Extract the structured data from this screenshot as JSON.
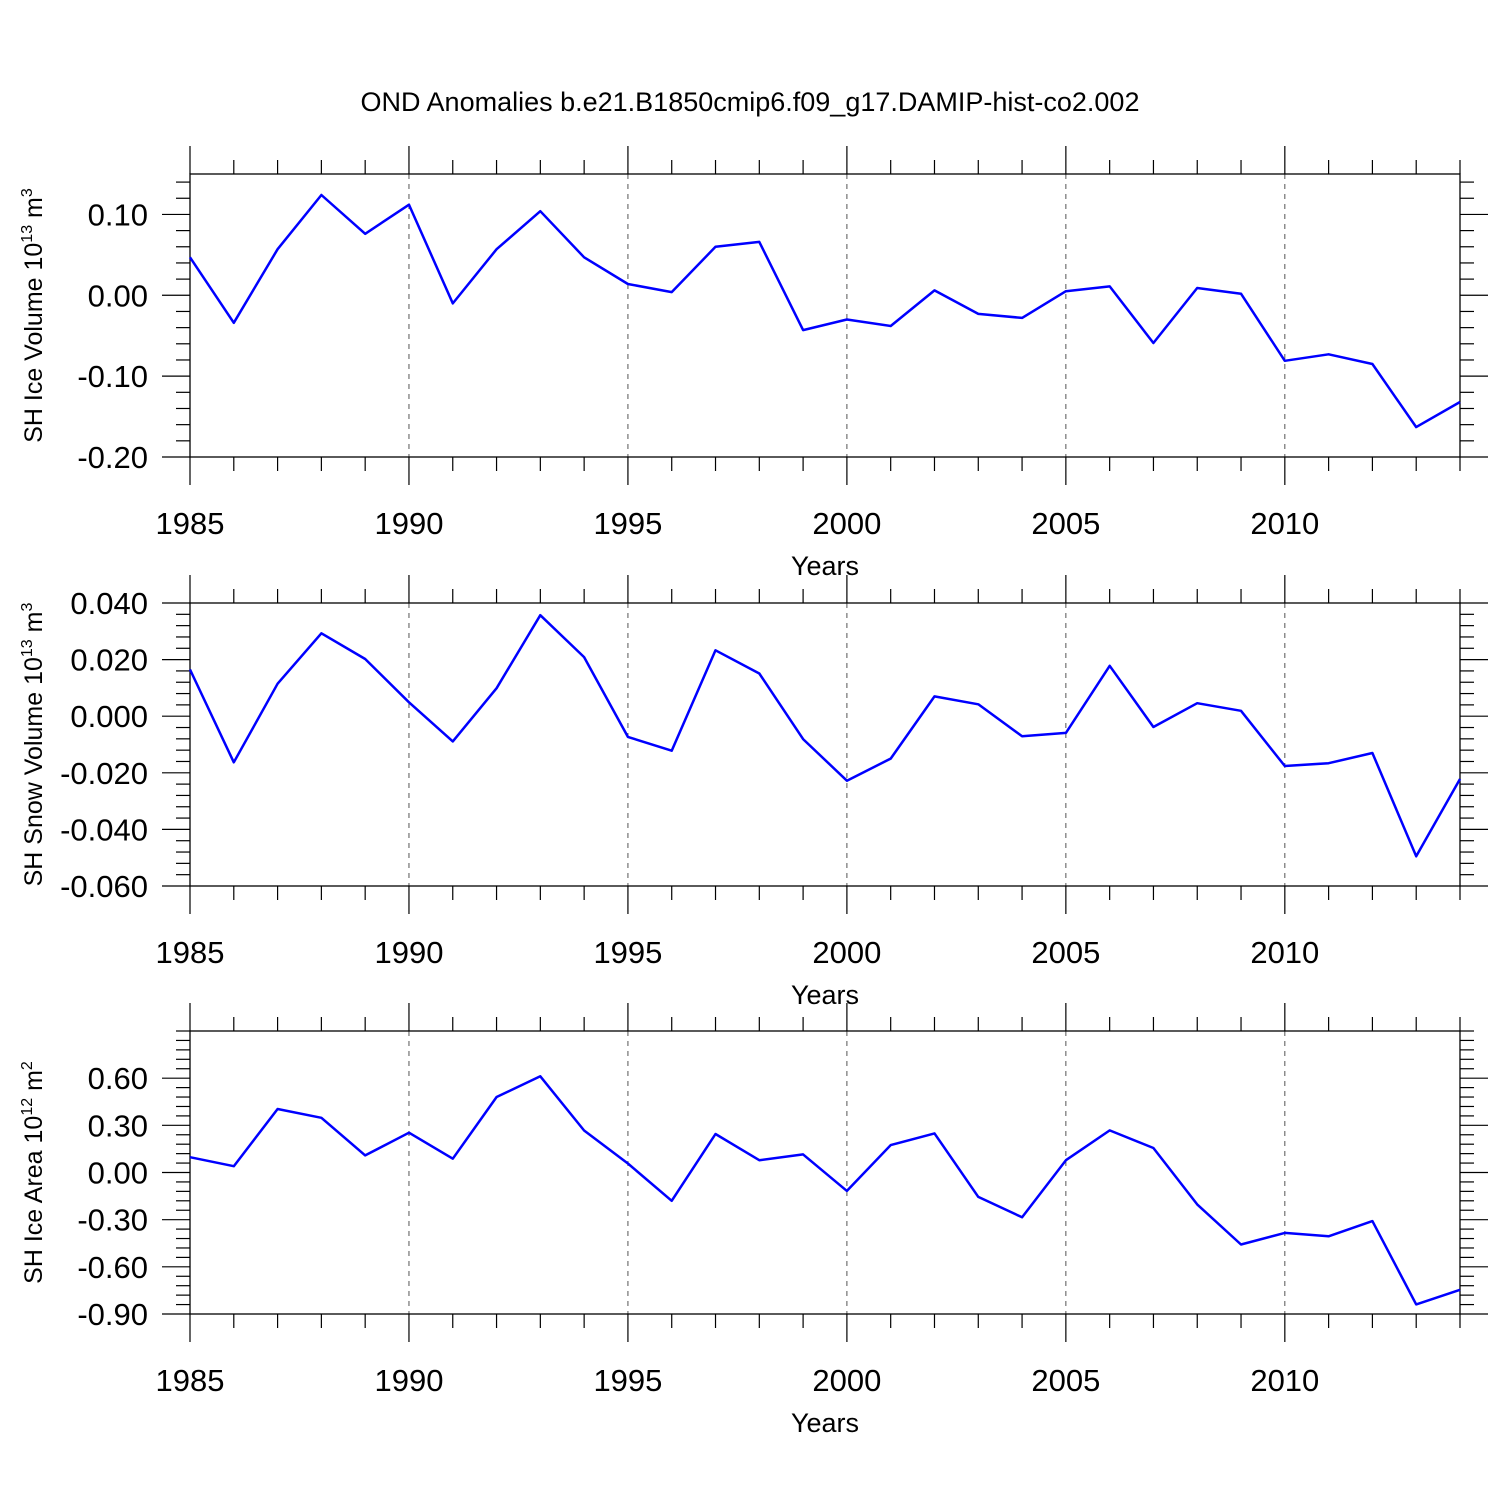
{
  "chart_data": [
    {
      "type": "line",
      "title": "OND Anomalies b.e21.B1850cmip6.f09_g17.DAMIP-hist-co2.002",
      "xlabel": "Years",
      "ylabel": "SH Ice Volume 10",
      "ylabel_sup": "13",
      "ylabel_unit": " m",
      "ylabel_unit_sup": "3",
      "xlim": [
        1985,
        2014
      ],
      "ylim": [
        -0.2,
        0.15
      ],
      "xticks": [
        "1985",
        "1990",
        "1995",
        "2000",
        "2005",
        "2010"
      ],
      "yticks": [
        "0.10",
        "0.00",
        "-0.10",
        "-0.20"
      ],
      "ytick_values": [
        0.1,
        0.0,
        -0.1,
        -0.2
      ],
      "grid": "vertical dashed at major x ticks",
      "x": [
        1985,
        1986,
        1987,
        1988,
        1989,
        1990,
        1991,
        1992,
        1993,
        1994,
        1995,
        1996,
        1997,
        1998,
        1999,
        2000,
        2001,
        2002,
        2003,
        2004,
        2005,
        2006,
        2007,
        2008,
        2009,
        2010,
        2011,
        2012,
        2013,
        2014
      ],
      "series": [
        {
          "color": "#0000ff",
          "values": [
            0.047,
            -0.034,
            0.057,
            0.124,
            0.076,
            0.112,
            -0.01,
            0.057,
            0.104,
            0.047,
            0.014,
            0.004,
            0.06,
            0.066,
            -0.043,
            -0.03,
            -0.038,
            0.006,
            -0.023,
            -0.028,
            0.005,
            0.011,
            -0.059,
            0.009,
            0.002,
            -0.081,
            -0.073,
            -0.085,
            -0.163,
            -0.132
          ]
        }
      ]
    },
    {
      "type": "line",
      "xlabel": "Years",
      "ylabel": "SH Snow Volume 10",
      "ylabel_sup": "13",
      "ylabel_unit": " m",
      "ylabel_unit_sup": "3",
      "xlim": [
        1985,
        2014
      ],
      "ylim": [
        -0.06,
        0.04
      ],
      "xticks": [
        "1985",
        "1990",
        "1995",
        "2000",
        "2005",
        "2010"
      ],
      "yticks": [
        "0.040",
        "0.020",
        "0.000",
        "-0.020",
        "-0.040",
        "-0.060"
      ],
      "ytick_values": [
        0.04,
        0.02,
        0.0,
        -0.02,
        -0.04,
        -0.06
      ],
      "grid": "vertical dashed at major x ticks",
      "x": [
        1985,
        1986,
        1987,
        1988,
        1989,
        1990,
        1991,
        1992,
        1993,
        1994,
        1995,
        1996,
        1997,
        1998,
        1999,
        2000,
        2001,
        2002,
        2003,
        2004,
        2005,
        2006,
        2007,
        2008,
        2009,
        2010,
        2011,
        2012,
        2013,
        2014
      ],
      "series": [
        {
          "color": "#0000ff",
          "values": [
            0.0165,
            -0.0163,
            0.0115,
            0.0293,
            0.0202,
            0.0049,
            -0.0089,
            0.0099,
            0.0357,
            0.0209,
            -0.0073,
            -0.0122,
            0.0233,
            0.0151,
            -0.0081,
            -0.0228,
            -0.015,
            0.007,
            0.0042,
            -0.0071,
            -0.0059,
            0.0178,
            -0.0038,
            0.0046,
            0.0019,
            -0.0176,
            -0.0166,
            -0.013,
            -0.0495,
            -0.0222
          ]
        }
      ]
    },
    {
      "type": "line",
      "xlabel": "Years",
      "ylabel": "SH Ice Area 10",
      "ylabel_sup": "12",
      "ylabel_unit": " m",
      "ylabel_unit_sup": "2",
      "xlim": [
        1985,
        2014
      ],
      "ylim": [
        -0.9,
        0.9
      ],
      "xticks": [
        "1985",
        "1990",
        "1995",
        "2000",
        "2005",
        "2010"
      ],
      "yticks": [
        "0.60",
        "0.30",
        "0.00",
        "-0.30",
        "-0.60",
        "-0.90"
      ],
      "ytick_values": [
        0.6,
        0.3,
        0.0,
        -0.3,
        -0.6,
        -0.9
      ],
      "grid": "vertical dashed at major x ticks",
      "x": [
        1985,
        1986,
        1987,
        1988,
        1989,
        1990,
        1991,
        1992,
        1993,
        1994,
        1995,
        1996,
        1997,
        1998,
        1999,
        2000,
        2001,
        2002,
        2003,
        2004,
        2005,
        2006,
        2007,
        2008,
        2009,
        2010,
        2011,
        2012,
        2013,
        2014
      ],
      "series": [
        {
          "color": "#0000ff",
          "values": [
            0.097,
            0.04,
            0.404,
            0.348,
            0.109,
            0.253,
            0.088,
            0.48,
            0.612,
            0.267,
            0.057,
            -0.18,
            0.245,
            0.078,
            0.115,
            -0.117,
            0.174,
            0.249,
            -0.155,
            -0.285,
            0.078,
            0.268,
            0.156,
            -0.203,
            -0.458,
            -0.384,
            -0.406,
            -0.309,
            -0.839,
            -0.746
          ]
        }
      ]
    }
  ]
}
